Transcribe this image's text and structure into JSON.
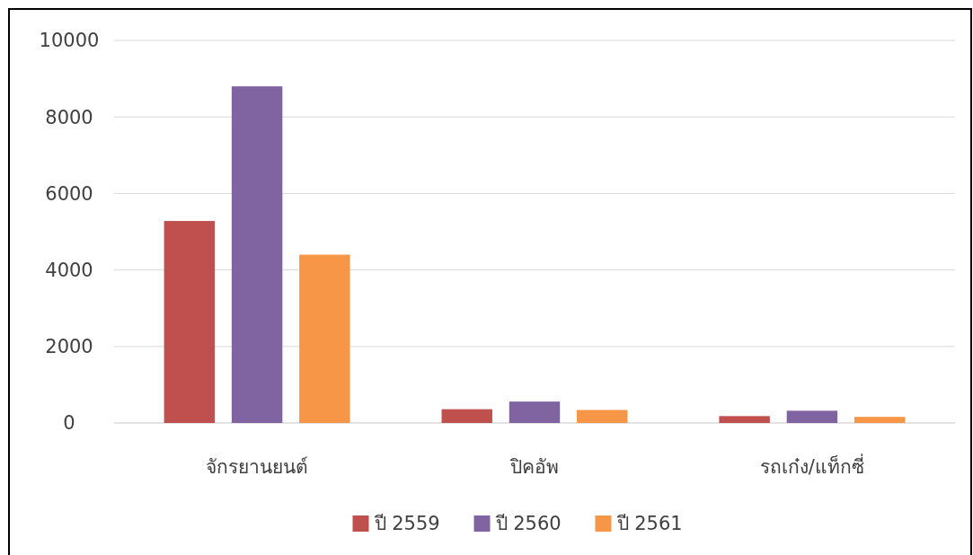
{
  "chart_data": {
    "type": "bar",
    "categories": [
      "จักรยานยนต์",
      "ปิคอัพ",
      "รถเก๋ง/แท็กซี่"
    ],
    "series": [
      {
        "name": "ปี 2559",
        "color": "#c0504d",
        "values": [
          5280,
          360,
          180
        ]
      },
      {
        "name": "ปี 2560",
        "color": "#8064a2",
        "values": [
          8800,
          560,
          320
        ]
      },
      {
        "name": "ปี 2561",
        "color": "#f79646",
        "values": [
          4400,
          340,
          160
        ]
      }
    ],
    "ylim": [
      0,
      10000
    ],
    "yticks": [
      0,
      2000,
      4000,
      6000,
      8000,
      10000
    ],
    "grid": "y",
    "legend": "bottom"
  }
}
